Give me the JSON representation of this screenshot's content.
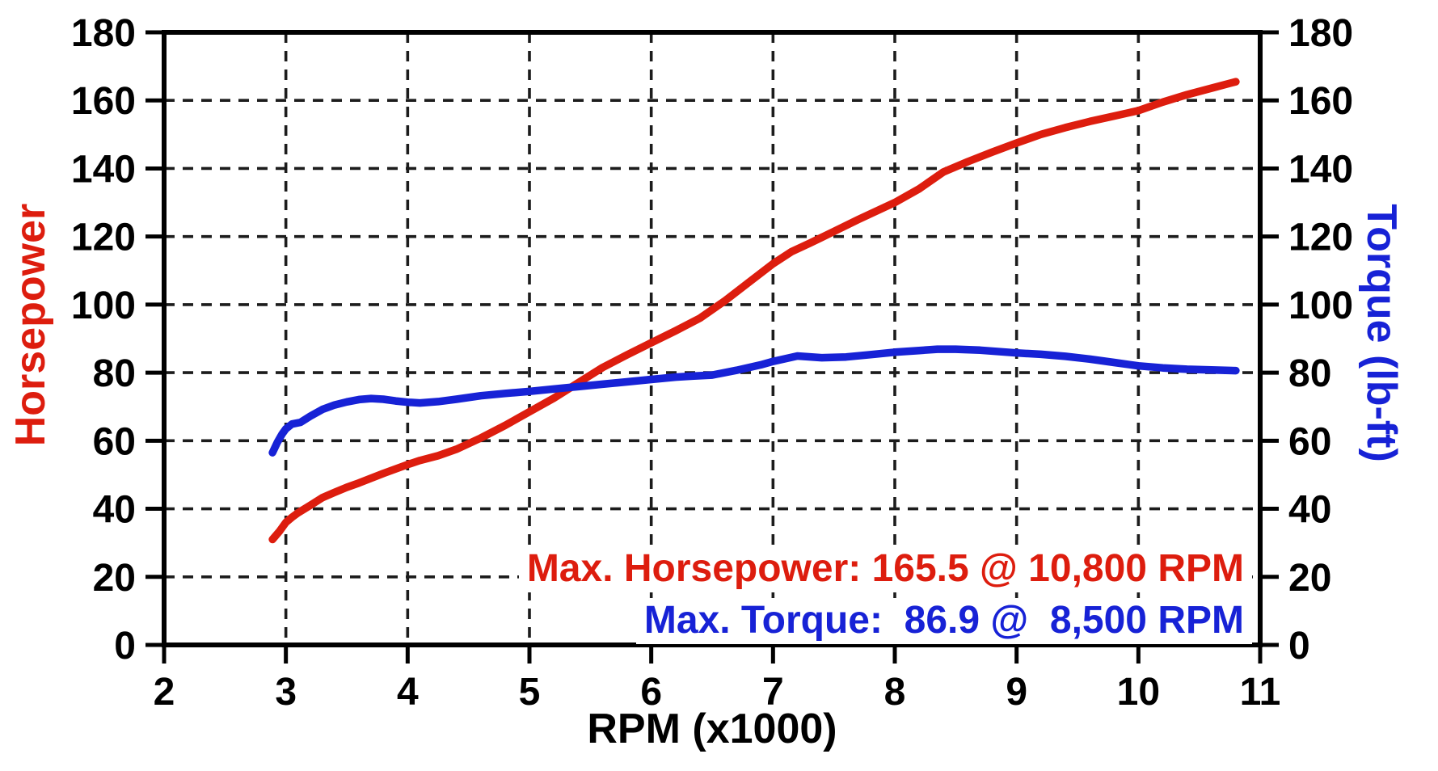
{
  "chart_data": {
    "type": "line",
    "title": "",
    "xlabel": "RPM (x1000)",
    "ylabel_left": "Horsepower",
    "ylabel_right": "Torque (lb-ft)",
    "xlim": [
      2,
      11
    ],
    "ylim_left": [
      0,
      180
    ],
    "ylim_right": [
      0,
      180
    ],
    "x_ticks": [
      2,
      3,
      4,
      5,
      6,
      7,
      8,
      9,
      10,
      11
    ],
    "y_ticks": [
      0,
      20,
      40,
      60,
      80,
      100,
      120,
      140,
      160,
      180
    ],
    "grid": "dashed",
    "legend_position": "none",
    "colors": {
      "horsepower": "#dd1d0e",
      "torque": "#1722d6",
      "grid": "#1c1c1c",
      "axis": "#000000",
      "background": "#ffffff"
    },
    "series": [
      {
        "name": "Horsepower",
        "axis": "left",
        "color": "#dd1d0e",
        "x": [
          2.89,
          2.95,
          3.0,
          3.05,
          3.1,
          3.2,
          3.3,
          3.4,
          3.5,
          3.6,
          3.8,
          4.0,
          4.1,
          4.25,
          4.4,
          4.6,
          4.8,
          5.0,
          5.2,
          5.4,
          5.6,
          5.8,
          6.0,
          6.2,
          6.4,
          6.6,
          6.8,
          7.0,
          7.15,
          7.3,
          7.5,
          7.7,
          8.0,
          8.2,
          8.4,
          8.6,
          8.8,
          9.0,
          9.2,
          9.4,
          9.6,
          9.8,
          10.0,
          10.2,
          10.4,
          10.6,
          10.8
        ],
        "values": [
          31,
          33.5,
          36,
          37.5,
          38.8,
          41,
          43.3,
          44.8,
          46.3,
          47.6,
          50.4,
          53,
          54.2,
          55.6,
          57.5,
          60.8,
          64.5,
          68.5,
          72.5,
          77,
          81.5,
          85.2,
          88.8,
          92.3,
          96,
          101,
          106.5,
          112,
          115.5,
          118,
          121.5,
          125,
          130,
          134,
          139,
          142,
          144.8,
          147.5,
          150,
          152,
          153.8,
          155.4,
          157,
          159.5,
          161.7,
          163.6,
          165.5
        ]
      },
      {
        "name": "Torque",
        "axis": "right",
        "color": "#1722d6",
        "x": [
          2.89,
          2.93,
          2.97,
          3.0,
          3.05,
          3.12,
          3.2,
          3.3,
          3.4,
          3.5,
          3.6,
          3.7,
          3.8,
          3.9,
          4.0,
          4.1,
          4.25,
          4.4,
          4.6,
          4.8,
          5.0,
          5.2,
          5.4,
          5.6,
          5.8,
          6.0,
          6.2,
          6.35,
          6.5,
          6.7,
          6.9,
          7.0,
          7.2,
          7.4,
          7.6,
          7.8,
          8.0,
          8.2,
          8.35,
          8.5,
          8.7,
          9.0,
          9.2,
          9.4,
          9.6,
          9.8,
          10.0,
          10.2,
          10.4,
          10.6,
          10.8
        ],
        "values": [
          56.5,
          59.5,
          62,
          63.5,
          64.9,
          65.4,
          67.2,
          69.2,
          70.5,
          71.4,
          72.1,
          72.4,
          72.2,
          71.7,
          71.3,
          71.1,
          71.5,
          72.2,
          73.2,
          73.9,
          74.5,
          75.2,
          75.9,
          76.6,
          77.3,
          78.0,
          78.7,
          79.0,
          79.3,
          80.7,
          82.3,
          83.3,
          84.9,
          84.4,
          84.6,
          85.3,
          86.0,
          86.5,
          86.9,
          86.9,
          86.6,
          85.8,
          85.4,
          84.8,
          84.0,
          83.0,
          82.0,
          81.4,
          81.0,
          80.8,
          80.6
        ]
      }
    ],
    "annotations": [
      {
        "text": "Max. Horsepower: 165.5 @ 10,800 RPM",
        "color": "#dd1d0e"
      },
      {
        "text": "Max. Torque:  86.9 @  8,500 RPM",
        "color": "#1722d6"
      }
    ],
    "max_horsepower": {
      "value": 165.5,
      "rpm": "10,800"
    },
    "max_torque": {
      "value": 86.9,
      "rpm": "8,500"
    }
  }
}
